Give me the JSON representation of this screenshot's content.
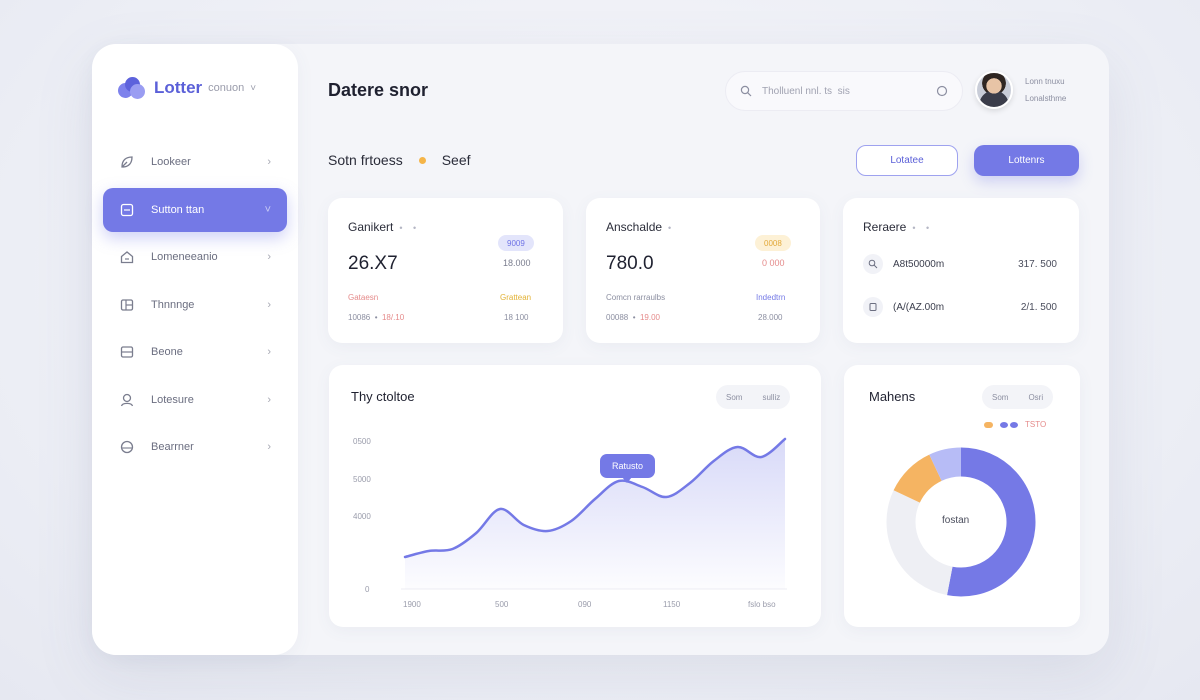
{
  "brand": {
    "name": "Lotter",
    "sub": "conuon",
    "caret": "˅"
  },
  "sidebar": {
    "items": [
      {
        "label": "Lookeer",
        "icon": "leaf-icon",
        "active": false
      },
      {
        "label": "Sutton ttan",
        "icon": "square-icon",
        "active": true
      },
      {
        "label": "Lomeneeanio",
        "icon": "home-icon",
        "active": false
      },
      {
        "label": "Thnnnge",
        "icon": "layers-icon",
        "active": false
      },
      {
        "label": "Beone",
        "icon": "card-icon",
        "active": false
      },
      {
        "label": "Lotesure",
        "icon": "user-icon",
        "active": false
      },
      {
        "label": "Bearrner",
        "icon": "globe-icon",
        "active": false
      }
    ]
  },
  "header": {
    "title": "Datere snor",
    "search_text": "Tholluenl nnl. ts",
    "search_dots": "sis",
    "user_line1": "Lonn tnuxu",
    "user_line2": "Lonalsthme"
  },
  "subheader": {
    "left": "Sotn frtoess",
    "right": "Seef"
  },
  "buttons": {
    "outline": "Lotatee",
    "primary": "Lottenrs"
  },
  "cards": [
    {
      "title": "Ganikert",
      "value": "26.X7",
      "pill": "9009",
      "side": "18.000",
      "row1_left": "Gataesn",
      "row1_right": "Grattean",
      "row2_left": "10086",
      "row2_left_accent": "18/.10",
      "row2_right": "18 100",
      "pill_bg": "#e3e5fb",
      "pill_fg": "#6f73e6",
      "side_color": "#7a7d8e",
      "row1_left_color": "#e58b8b",
      "row1_right_color": "#e2b236",
      "accent_color": "#e58b8b"
    },
    {
      "title": "Anschalde",
      "value": "780.0",
      "pill": "0008",
      "side": "0 000",
      "row1_left": "Comcn rarraulbs",
      "row1_right": "Indedtrn",
      "row2_left": "00088",
      "row2_left_accent": "19.00",
      "row2_right": "28.000",
      "pill_bg": "#fdf1d6",
      "pill_fg": "#e2a93a",
      "side_color": "#e58b8b",
      "row1_left_color": "#8c8fa1",
      "row1_right_color": "#7479e6",
      "accent_color": "#e58b8b"
    }
  ],
  "list_card": {
    "title": "Reraere",
    "rows": [
      {
        "label": "A8t50000m",
        "value": "317. 500"
      },
      {
        "label": "(A/(AZ.00m",
        "value": "2/1. 500"
      }
    ]
  },
  "line_panel": {
    "title": "Thy ctoltoe",
    "seg": [
      "Som",
      "sulliz"
    ],
    "tooltip": "Ratusto",
    "ylabels": [
      "0500",
      "5000",
      "4000",
      "0"
    ],
    "xlabels": [
      "1900",
      "500",
      "090",
      "1150",
      "fslo bso"
    ]
  },
  "donut_panel": {
    "title": "Mahens",
    "seg": [
      "Som",
      "Osri"
    ],
    "center_label": "fostan",
    "legend_right": "TSTO",
    "colors": {
      "main": "#7579e6",
      "second": "#f5b462",
      "third": "#b7bcf6",
      "rest": "#eeeff4"
    }
  },
  "chart_data": [
    {
      "type": "area",
      "title": "Thy ctoltoe",
      "x": [
        0,
        1,
        2,
        3,
        4,
        5,
        6,
        7,
        8,
        9,
        10,
        11,
        12,
        13,
        14,
        15,
        16
      ],
      "series": [
        {
          "values": [
            0.1,
            0.4,
            0.5,
            1.3,
            2.5,
            1.7,
            1.4,
            1.9,
            3.0,
            3.9,
            3.6,
            3.1,
            3.8,
            4.9,
            5.6,
            5.1,
            6.0
          ]
        }
      ],
      "ylim": [
        0,
        7
      ],
      "color": "#7479e6"
    },
    {
      "type": "pie",
      "title": "Mahens",
      "labels": [
        "main",
        "second",
        "third",
        "rest"
      ],
      "values": [
        53,
        11,
        7,
        29
      ]
    }
  ]
}
